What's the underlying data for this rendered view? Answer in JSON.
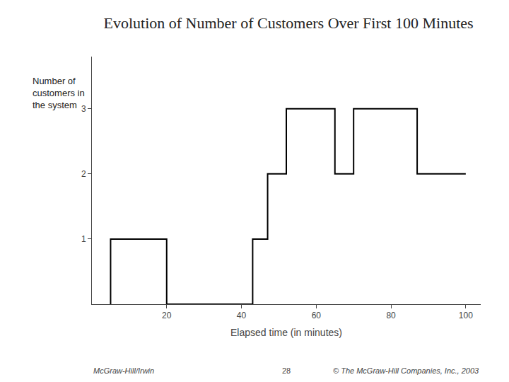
{
  "chart_data": {
    "type": "line",
    "title": "Evolution of Number of Customers Over First 100 Minutes",
    "xlabel": "Elapsed time (in minutes)",
    "ylabel": "Number of\ncustomers in\nthe system",
    "x": [
      5,
      5,
      20,
      20,
      43,
      43,
      47,
      47,
      52,
      52,
      65,
      65,
      70,
      70,
      87,
      87,
      100
    ],
    "values": [
      0,
      1,
      1,
      0,
      0,
      1,
      1,
      2,
      2,
      3,
      3,
      2,
      2,
      3,
      3,
      2,
      2
    ],
    "color": "#000000",
    "xlim": [
      0,
      104
    ],
    "ylim": [
      0,
      3.8
    ],
    "xticks": [
      20,
      40,
      60,
      80,
      100
    ],
    "yticks": [
      1,
      2,
      3
    ],
    "grid": false,
    "annotations": [
      "McGraw-Hill/Irwin",
      "28",
      "© The McGraw-Hill Companies, Inc., 2003"
    ]
  }
}
